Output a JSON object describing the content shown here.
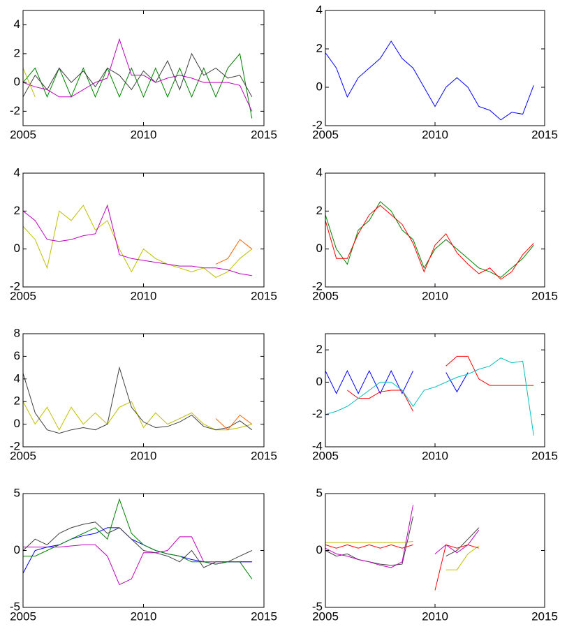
{
  "chart_data": [
    {
      "type": "line",
      "x": [
        2005,
        2005.5,
        2006,
        2006.5,
        2007,
        2007.5,
        2008,
        2008.5,
        2009,
        2009.5,
        2010,
        2010.5,
        2011,
        2011.5,
        2012,
        2012.5,
        2013,
        2013.5,
        2014,
        2014.5
      ],
      "xlim": [
        2005,
        2015
      ],
      "xticks": [
        2005,
        2010,
        2015
      ],
      "ylim": [
        -3,
        5
      ],
      "yticks": [
        -2,
        0,
        2,
        4
      ],
      "series": [
        {
          "color": "#008000",
          "values": [
            0,
            1,
            -1,
            1,
            -1,
            1,
            -1,
            1,
            -1,
            1,
            -1,
            1,
            -1,
            1,
            -1,
            1,
            -1,
            1,
            2,
            -2.5
          ]
        },
        {
          "color": "#bf00bf",
          "values": [
            0,
            -0.3,
            -0.5,
            -1,
            -1,
            -0.5,
            0,
            0.3,
            3,
            0.5,
            0.5,
            0,
            0.3,
            0.5,
            0.3,
            0,
            0,
            0,
            -0.2,
            -2
          ]
        },
        {
          "color": "#404040",
          "values": [
            -1,
            0.5,
            -0.5,
            1,
            0,
            0.8,
            -0.3,
            1,
            0.5,
            -0.5,
            0.8,
            0,
            1.5,
            -0.5,
            2,
            0.5,
            1,
            0.3,
            0.5,
            -1
          ]
        },
        {
          "color": "#bfbf00",
          "values": [
            1,
            -1,
            null,
            null,
            null,
            null,
            null,
            null,
            null,
            null,
            null,
            null,
            null,
            null,
            null,
            null,
            null,
            null,
            null,
            null
          ]
        }
      ]
    },
    {
      "type": "line",
      "x": [
        2005,
        2005.5,
        2006,
        2006.5,
        2007,
        2007.5,
        2008,
        2008.5,
        2009,
        2009.5,
        2010,
        2010.5,
        2011,
        2011.5,
        2012,
        2012.5,
        2013,
        2013.5,
        2014,
        2014.5
      ],
      "xlim": [
        2005,
        2015
      ],
      "xticks": [
        2005,
        2010,
        2015
      ],
      "ylim": [
        -2,
        4
      ],
      "yticks": [
        -2,
        0,
        2,
        4
      ],
      "series": [
        {
          "color": "#0000ff",
          "values": [
            1.8,
            1,
            -0.5,
            0.5,
            1,
            1.5,
            2.4,
            1.5,
            1,
            0,
            -1,
            0,
            0.5,
            0,
            -1,
            -1.2,
            -1.7,
            -1.3,
            -1.4,
            0.1
          ]
        }
      ]
    },
    {
      "type": "line",
      "x": [
        2005,
        2005.5,
        2006,
        2006.5,
        2007,
        2007.5,
        2008,
        2008.5,
        2009,
        2009.5,
        2010,
        2010.5,
        2011,
        2011.5,
        2012,
        2012.5,
        2013,
        2013.5,
        2014,
        2014.5
      ],
      "xlim": [
        2005,
        2015
      ],
      "xticks": [
        2005,
        2010,
        2015
      ],
      "ylim": [
        -2,
        4
      ],
      "yticks": [
        -2,
        0,
        2,
        4
      ],
      "series": [
        {
          "color": "#bfbf00",
          "values": [
            1.2,
            0.5,
            -1,
            2,
            1.5,
            2.3,
            1,
            1.5,
            0,
            -1.2,
            0,
            -0.5,
            -0.8,
            -1,
            -1.2,
            -1,
            -1.5,
            -1.2,
            -0.5,
            0
          ]
        },
        {
          "color": "#bf00bf",
          "values": [
            2,
            1.5,
            0.5,
            0.4,
            0.5,
            0.7,
            0.8,
            2.3,
            -0.3,
            -0.5,
            -0.6,
            -0.7,
            -0.8,
            -0.9,
            -0.9,
            -1,
            -1,
            -1.1,
            -1.3,
            -1.4
          ]
        },
        {
          "color": "#ff6600",
          "values": [
            null,
            null,
            null,
            null,
            null,
            null,
            null,
            null,
            null,
            null,
            null,
            null,
            null,
            null,
            null,
            null,
            -0.8,
            -0.5,
            0.5,
            0
          ]
        }
      ]
    },
    {
      "type": "line",
      "x": [
        2005,
        2005.5,
        2006,
        2006.5,
        2007,
        2007.5,
        2008,
        2008.5,
        2009,
        2009.5,
        2010,
        2010.5,
        2011,
        2011.5,
        2012,
        2012.5,
        2013,
        2013.5,
        2014,
        2014.5
      ],
      "xlim": [
        2005,
        2015
      ],
      "xticks": [
        2005,
        2010,
        2015
      ],
      "ylim": [
        -2,
        4
      ],
      "yticks": [
        -2,
        0,
        2,
        4
      ],
      "series": [
        {
          "color": "#008000",
          "values": [
            1.8,
            0,
            -0.8,
            1,
            1.5,
            2.5,
            2,
            1,
            0.5,
            -1,
            0,
            0.5,
            0,
            -0.5,
            -1,
            -1.2,
            -1.5,
            -1,
            -0.5,
            0.2
          ]
        },
        {
          "color": "#ff0000",
          "values": [
            1.5,
            -0.5,
            -0.5,
            0.8,
            1.8,
            2.3,
            1.8,
            1.3,
            0.3,
            -1.2,
            0.2,
            0.8,
            -0.2,
            -0.8,
            -1.3,
            -1,
            -1.6,
            -1.2,
            -0.3,
            0.3
          ]
        }
      ]
    },
    {
      "type": "line",
      "x": [
        2005,
        2005.5,
        2006,
        2006.5,
        2007,
        2007.5,
        2008,
        2008.5,
        2009,
        2009.5,
        2010,
        2010.5,
        2011,
        2011.5,
        2012,
        2012.5,
        2013,
        2013.5,
        2014,
        2014.5
      ],
      "xlim": [
        2005,
        2015
      ],
      "xticks": [
        2005,
        2010,
        2015
      ],
      "ylim": [
        -2,
        8
      ],
      "yticks": [
        -2,
        0,
        2,
        4,
        6,
        8
      ],
      "series": [
        {
          "color": "#bfbf00",
          "values": [
            2,
            0,
            1.5,
            -0.5,
            1.5,
            0,
            1,
            0,
            1.5,
            2,
            -0.3,
            1,
            0,
            0.5,
            1,
            0,
            -0.5,
            -0.5,
            -0.3,
            0
          ]
        },
        {
          "color": "#404040",
          "values": [
            4.5,
            1,
            -0.5,
            -0.8,
            -0.5,
            -0.3,
            -0.5,
            0,
            5,
            1.5,
            0.2,
            -0.3,
            -0.2,
            0.2,
            0.8,
            -0.2,
            -0.5,
            -0.3,
            0.3,
            -0.5
          ]
        },
        {
          "color": "#ff6600",
          "values": [
            null,
            null,
            null,
            null,
            null,
            null,
            null,
            null,
            null,
            null,
            null,
            null,
            null,
            null,
            null,
            null,
            0.5,
            -0.5,
            0.8,
            0
          ]
        }
      ]
    },
    {
      "type": "line",
      "x": [
        2005,
        2005.5,
        2006,
        2006.5,
        2007,
        2007.5,
        2008,
        2008.5,
        2009,
        2009.5,
        2010,
        2010.5,
        2011,
        2011.5,
        2012,
        2012.5,
        2013,
        2013.5,
        2014,
        2014.5
      ],
      "xlim": [
        2005,
        2015
      ],
      "xticks": [
        2005,
        2010,
        2015
      ],
      "ylim": [
        -4,
        3
      ],
      "yticks": [
        -4,
        -2,
        0,
        2
      ],
      "series": [
        {
          "color": "#0000ff",
          "values": [
            0.7,
            -0.7,
            0.7,
            -0.7,
            0.7,
            -0.7,
            0.7,
            -0.7,
            0.7,
            null,
            null,
            0.6,
            -0.6,
            0.6,
            null,
            null,
            null,
            null,
            null,
            null
          ]
        },
        {
          "color": "#ff0000",
          "values": [
            null,
            null,
            -0.5,
            -1,
            -1,
            -0.6,
            -0.5,
            -0.5,
            -1.8,
            null,
            null,
            1,
            1.6,
            1.6,
            0.2,
            -0.2,
            -0.2,
            -0.2,
            -0.2,
            -0.2
          ]
        },
        {
          "color": "#00bfbf",
          "values": [
            -2,
            -1.8,
            -1.5,
            -1,
            -0.5,
            0,
            0,
            -0.5,
            -1.5,
            -0.5,
            -0.3,
            0,
            0.3,
            0.5,
            0.8,
            1,
            1.5,
            1.2,
            1.3,
            -3.3
          ]
        }
      ]
    },
    {
      "type": "line",
      "x": [
        2005,
        2005.5,
        2006,
        2006.5,
        2007,
        2007.5,
        2008,
        2008.5,
        2009,
        2009.5,
        2010,
        2010.5,
        2011,
        2011.5,
        2012,
        2012.5,
        2013,
        2013.5,
        2014,
        2014.5
      ],
      "xlim": [
        2005,
        2015
      ],
      "xticks": [
        2005,
        2010,
        2015
      ],
      "ylim": [
        -5,
        5
      ],
      "yticks": [
        -5,
        0,
        5
      ],
      "series": [
        {
          "color": "#bf00bf",
          "values": [
            0.3,
            0.3,
            0.3,
            0.3,
            0.4,
            0.5,
            0.5,
            -0.5,
            -3,
            -2.5,
            -0.2,
            -0.2,
            0,
            1.2,
            1.2,
            -1,
            -1,
            -1,
            -1,
            -1
          ]
        },
        {
          "color": "#0000ff",
          "values": [
            -2,
            0,
            0.3,
            0.5,
            1,
            1.3,
            1.5,
            2,
            2,
            1,
            0.5,
            0,
            -0.3,
            -0.5,
            -0.8,
            -1,
            -1.2,
            -1,
            -1,
            -1
          ]
        },
        {
          "color": "#404040",
          "values": [
            0,
            1,
            0.5,
            1.5,
            2,
            2.3,
            2.5,
            1.5,
            2,
            1,
            0,
            -0.2,
            -0.5,
            -1,
            0,
            -1.5,
            -1,
            -1,
            -0.5,
            0
          ]
        },
        {
          "color": "#008000",
          "values": [
            -0.5,
            -0.5,
            0,
            0.5,
            1,
            1.5,
            2,
            1,
            4.5,
            1.5,
            0.5,
            0,
            -0.3,
            -0.5,
            -1,
            -1,
            -1.2,
            -1,
            -1,
            -2.5
          ]
        }
      ]
    },
    {
      "type": "line",
      "x": [
        2005,
        2005.5,
        2006,
        2006.5,
        2007,
        2007.5,
        2008,
        2008.5,
        2009,
        2009.5,
        2010,
        2010.5,
        2011,
        2011.5,
        2012,
        2012.5,
        2013,
        2013.5,
        2014,
        2014.5
      ],
      "xlim": [
        2005,
        2015
      ],
      "xticks": [
        2005,
        2010,
        2015
      ],
      "ylim": [
        -5,
        5
      ],
      "yticks": [
        -5,
        0,
        5
      ],
      "series": [
        {
          "color": "#bfbf00",
          "values": [
            0.7,
            0.7,
            0.7,
            0.7,
            0.7,
            0.7,
            0.7,
            0.7,
            0.8,
            null,
            null,
            -1.7,
            -1.7,
            -0.3,
            0.4,
            null,
            null,
            null,
            null,
            null
          ]
        },
        {
          "color": "#404040",
          "values": [
            0,
            -0.5,
            -0.3,
            -0.8,
            -1,
            -1.2,
            -1.3,
            -1.2,
            3,
            null,
            null,
            -0.5,
            0,
            1,
            2,
            null,
            null,
            null,
            null,
            null
          ]
        },
        {
          "color": "#bf00bf",
          "values": [
            0.2,
            -0.3,
            -0.5,
            -0.8,
            -1,
            -1.3,
            -1.5,
            -1,
            4,
            null,
            -0.3,
            0.5,
            -0.2,
            0.5,
            1.8,
            null,
            null,
            null,
            null,
            null
          ]
        },
        {
          "color": "#ff0000",
          "values": [
            0.5,
            0.2,
            0.5,
            0.2,
            0.5,
            0.2,
            0.5,
            0.2,
            0.5,
            null,
            -3.5,
            0.5,
            0.2,
            0.5,
            0.2,
            null,
            null,
            null,
            null,
            null
          ]
        }
      ]
    }
  ]
}
